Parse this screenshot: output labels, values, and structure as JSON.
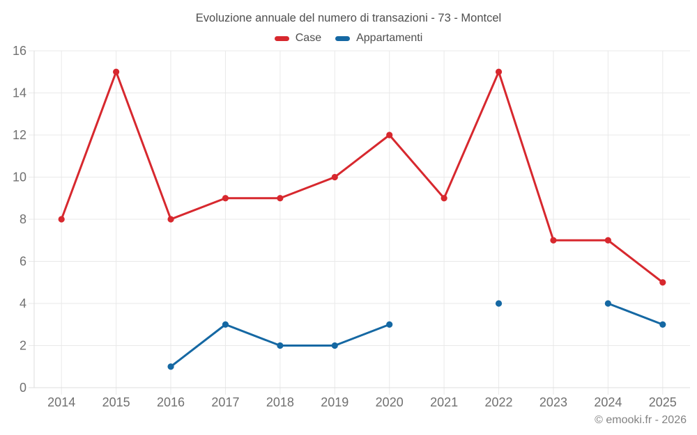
{
  "chart_data": {
    "type": "line",
    "title": "Evoluzione annuale del numero di transazioni - 73 - Montcel",
    "categories": [
      "2014",
      "2015",
      "2016",
      "2017",
      "2018",
      "2019",
      "2020",
      "2021",
      "2022",
      "2023",
      "2024",
      "2025"
    ],
    "series": [
      {
        "name": "Case",
        "color": "#d7282e",
        "values": [
          8,
          15,
          8,
          9,
          9,
          10,
          12,
          9,
          15,
          7,
          7,
          5
        ]
      },
      {
        "name": "Appartamenti",
        "color": "#1568a3",
        "values": [
          null,
          null,
          1,
          3,
          2,
          2,
          3,
          null,
          4,
          null,
          4,
          3
        ]
      }
    ],
    "xlabel": "",
    "ylabel": "",
    "ylim": [
      0,
      16
    ],
    "ytick_step": 2,
    "grid": true,
    "legend_position": "top",
    "gap_policy": "break-at-null"
  },
  "footer": {
    "copyright": "© emooki.fr - 2026"
  }
}
